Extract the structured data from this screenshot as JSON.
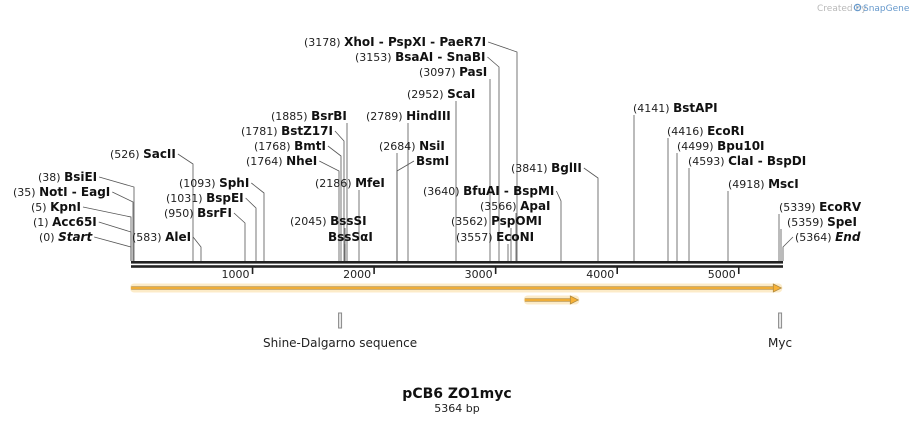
{
  "watermark": "Created by",
  "brand": "SnapGene",
  "title": "pCB6 ZO1myc",
  "length_label": "5364 bp",
  "seq_length": 5364,
  "scale_ticks": [
    {
      "value": 1000,
      "label": "1000"
    },
    {
      "value": 2000,
      "label": "2000"
    },
    {
      "value": 3000,
      "label": "3000"
    },
    {
      "value": 4000,
      "label": "4000"
    },
    {
      "value": 5000,
      "label": "5000"
    }
  ],
  "site_labels": [
    {
      "pos": "(0)",
      "name": "Start",
      "site": 0,
      "kind": "end"
    },
    {
      "pos": "(1)",
      "name": "Acc65I",
      "site": 1
    },
    {
      "pos": "(5)",
      "name": "KpnI",
      "site": 5
    },
    {
      "pos": "(35)",
      "name": "NotI",
      "sep": " - ",
      "name2": "EagI",
      "site": 35
    },
    {
      "pos": "(38)",
      "name": "BsiEI",
      "site": 38
    },
    {
      "pos": "(526)",
      "name": "SacII",
      "site": 526
    },
    {
      "pos": "(583)",
      "name": "AleI",
      "site": 583
    },
    {
      "pos": "(950)",
      "name": "BsrFI",
      "site": 950
    },
    {
      "pos": "(1031)",
      "name": "BspEI",
      "site": 1031
    },
    {
      "pos": "(1093)",
      "name": "SphI",
      "site": 1093
    },
    {
      "pos": "(1764)",
      "name": "NheI",
      "site": 1764
    },
    {
      "pos": "(1768)",
      "name": "BmtI",
      "site": 1768
    },
    {
      "pos": "(1781)",
      "name": "BstZ17I",
      "site": 1781
    },
    {
      "pos": "(1885)",
      "name": "BsrBI",
      "site": 1885
    },
    {
      "pos": "(2045)",
      "name": "BssSI",
      "site": 2045
    },
    {
      "pos": "",
      "name": "BssSαI",
      "site": 2045
    },
    {
      "pos": "(2186)",
      "name": "MfeI",
      "site": 2186
    },
    {
      "pos": "(2684)",
      "name": "NsiI",
      "site": 2684
    },
    {
      "pos": "",
      "name": "BsmI",
      "site": 2684
    },
    {
      "pos": "(2789)",
      "name": "HindIII",
      "site": 2789
    },
    {
      "pos": "(2952)",
      "name": "ScaI",
      "site": 2952
    },
    {
      "pos": "(3097)",
      "name": "PasI",
      "site": 3097
    },
    {
      "pos": "(3153)",
      "name": "BsaAI",
      "sep": " - ",
      "name2": "SnaBI",
      "site": 3153
    },
    {
      "pos": "(3178)",
      "name": "XhoI",
      "sep": " - ",
      "name2": "PspXI",
      "sep2": " - ",
      "name3": "PaeR7I",
      "site": 3178
    },
    {
      "pos": "(3557)",
      "name": "EcoNI",
      "site": 3557
    },
    {
      "pos": "(3562)",
      "name": "PspOMI",
      "site": 3562
    },
    {
      "pos": "(3566)",
      "name": "ApaI",
      "site": 3566
    },
    {
      "pos": "(3640)",
      "name": "BfuAI",
      "sep": " - ",
      "name2": "BspMI",
      "site": 3640
    },
    {
      "pos": "(3841)",
      "name": "BglII",
      "site": 3841
    },
    {
      "pos": "(4141)",
      "name": "BstAPI",
      "site": 4141
    },
    {
      "pos": "(4416)",
      "name": "EcoRI",
      "site": 4416
    },
    {
      "pos": "(4499)",
      "name": "Bpu10I",
      "site": 4499
    },
    {
      "pos": "(4593)",
      "name": "ClaI",
      "sep": " - ",
      "name2": "BspDI",
      "site": 4593
    },
    {
      "pos": "(4918)",
      "name": "MscI",
      "site": 4918
    },
    {
      "pos": "(5339)",
      "name": "EcoRV",
      "site": 5339
    },
    {
      "pos": "(5359)",
      "name": "SpeI",
      "site": 5359
    },
    {
      "pos": "(5364)",
      "name": "End",
      "site": 5364,
      "kind": "end"
    }
  ],
  "features": [
    {
      "name": "Shine-Dalgarno sequence",
      "start": 1710,
      "end": 1730
    },
    {
      "name": "Myc",
      "start": 5330,
      "end": 5350
    }
  ],
  "orfs": [
    {
      "start": 1,
      "end": 5350
    },
    {
      "start": 3240,
      "end": 3680
    }
  ],
  "colors": {
    "orf_fill": "#f8b236",
    "orf_outline": "#b08a40",
    "backbone": "#222222",
    "feature": "#8a8a8a",
    "brand": "#6699cc"
  }
}
